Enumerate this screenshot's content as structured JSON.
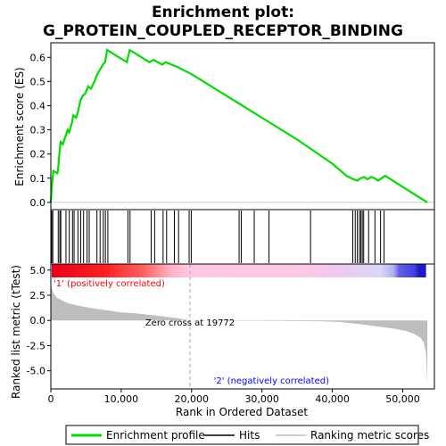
{
  "chart_data": {
    "type": "line",
    "title_line1": "Enrichment plot:",
    "title_line2": "G_PROTEIN_COUPLED_RECEPTOR_BINDING",
    "top_ylabel": "Enrichment score (ES)",
    "bottom_ylabel": "Ranked list metric (tTest)",
    "xlabel": "Rank in Ordered Dataset",
    "xlim": [
      0,
      54500
    ],
    "x_ticks": [
      0,
      10000,
      20000,
      30000,
      40000,
      50000
    ],
    "x_tick_labels": [
      "0",
      "10,000",
      "20,000",
      "30,000",
      "40,000",
      "50,000"
    ],
    "es_ylim": [
      -0.03,
      0.66
    ],
    "es_ticks": [
      0.0,
      0.1,
      0.2,
      0.3,
      0.4,
      0.5,
      0.6
    ],
    "es_tick_labels": [
      "0.0",
      "0.1",
      "0.2",
      "0.3",
      "0.4",
      "0.5",
      "0.6"
    ],
    "metric_ylim": [
      -6.8,
      5.6
    ],
    "metric_ticks": [
      5.0,
      2.5,
      0.0,
      -2.5,
      -5.0
    ],
    "metric_tick_labels": [
      "5.0",
      "2.5",
      "0.0",
      "-2.5",
      "-5.0"
    ],
    "zero_cross_rank": 19772,
    "zero_cross_label": "Zero cross at 19772",
    "pos_label": "'1' (positively correlated)",
    "neg_label": "'2' (negatively correlated)",
    "es_profile": {
      "x": [
        0,
        150,
        350,
        900,
        1000,
        1100,
        1200,
        1400,
        1700,
        2400,
        2600,
        3000,
        3200,
        3600,
        3900,
        4200,
        4500,
        4900,
        5300,
        5700,
        6200,
        6600,
        7000,
        7400,
        7700,
        8000,
        10800,
        11200,
        14000,
        14600,
        15800,
        16300,
        18000,
        20000,
        25000,
        30000,
        35000,
        40000,
        42000,
        43000,
        43600,
        44000,
        44500,
        45000,
        45500,
        46000,
        46500,
        47000,
        47500,
        53500
      ],
      "y": [
        0.0,
        0.07,
        0.13,
        0.12,
        0.13,
        0.16,
        0.2,
        0.25,
        0.24,
        0.3,
        0.29,
        0.33,
        0.36,
        0.35,
        0.38,
        0.42,
        0.44,
        0.45,
        0.48,
        0.47,
        0.5,
        0.53,
        0.55,
        0.57,
        0.58,
        0.63,
        0.58,
        0.63,
        0.58,
        0.59,
        0.57,
        0.58,
        0.56,
        0.53,
        0.44,
        0.35,
        0.26,
        0.16,
        0.11,
        0.095,
        0.09,
        0.1,
        0.105,
        0.095,
        0.105,
        0.1,
        0.09,
        0.1,
        0.11,
        0.0
      ]
    },
    "hits": [
      120,
      280,
      1050,
      1280,
      1420,
      2150,
      2620,
      3080,
      3300,
      3850,
      4250,
      4650,
      5150,
      5450,
      6550,
      7000,
      7450,
      7750,
      8100,
      10950,
      11250,
      14250,
      14750,
      15950,
      16450,
      17550,
      18150,
      19650,
      19950,
      26750,
      27050,
      28900,
      31000,
      36900,
      42900,
      43250,
      43550,
      43850,
      44050,
      44250,
      44450,
      45150,
      46050,
      46850,
      47350
    ],
    "metric_profile": {
      "x": [
        0,
        300,
        800,
        1500,
        2500,
        4000,
        6000,
        8000,
        10000,
        12000,
        14000,
        16000,
        18000,
        19772,
        22000,
        30000,
        38000,
        41000,
        44000,
        47000,
        49000,
        50500,
        51500,
        52500,
        53000,
        53300,
        53500
      ],
      "y": [
        3.5,
        2.8,
        2.3,
        2.0,
        1.7,
        1.45,
        1.2,
        1.0,
        0.8,
        0.7,
        0.55,
        0.4,
        0.22,
        0.0,
        -0.03,
        -0.05,
        -0.08,
        -0.15,
        -0.38,
        -0.65,
        -0.85,
        -1.05,
        -1.3,
        -1.7,
        -2.2,
        -3.2,
        -6.2
      ]
    },
    "legend": [
      "Enrichment profile",
      "Hits",
      "Ranking metric scores"
    ],
    "colors": {
      "es_line": "#00dd00",
      "hits": "#000000",
      "metric_fill": "#bebebe",
      "zero_cross_line": "#aaaaaa",
      "pos_label": "#ff0000",
      "neg_label": "#0000ff",
      "frame": "#000000"
    }
  }
}
